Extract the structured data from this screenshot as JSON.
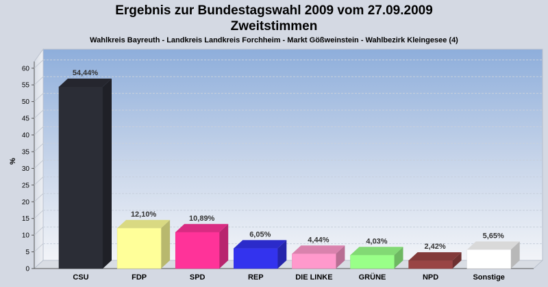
{
  "chart_data": {
    "type": "bar",
    "title_line1": "Ergebnis zur Bundestagswahl 2009 vom 27.09.2009",
    "title_line2": "Zweitstimmen",
    "subtitle": "Wahlkreis Bayreuth - Landkreis Landkreis Forchheim - Markt Gößweinstein - Wahlbezirk Kleingesee (4)",
    "ylabel": "%",
    "ylim": [
      0,
      62
    ],
    "yticks": [
      0,
      5,
      10,
      15,
      20,
      25,
      30,
      35,
      40,
      45,
      50,
      55,
      60
    ],
    "grid": true,
    "categories": [
      "CSU",
      "FDP",
      "SPD",
      "REP",
      "DIE LINKE",
      "GRÜNE",
      "NPD",
      "Sonstige"
    ],
    "values": [
      54.44,
      12.1,
      10.89,
      6.05,
      4.44,
      4.03,
      2.42,
      5.65
    ],
    "value_labels": [
      "54,44%",
      "12,10%",
      "10,89%",
      "6,05%",
      "4,44%",
      "4,03%",
      "2,42%",
      "5,65%"
    ],
    "colors": [
      "#2b2d36",
      "#ffff99",
      "#ff3399",
      "#3333ee",
      "#ff99cc",
      "#99ff88",
      "#994444",
      "#ffffff"
    ]
  }
}
